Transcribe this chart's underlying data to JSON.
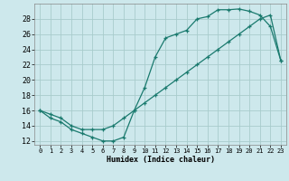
{
  "xlabel": "Humidex (Indice chaleur)",
  "bg_color": "#cde8ec",
  "line_color": "#1a7a6e",
  "grid_color": "#a8cccc",
  "xlim": [
    -0.5,
    23.5
  ],
  "ylim": [
    11.5,
    30.0
  ],
  "xticks": [
    0,
    1,
    2,
    3,
    4,
    5,
    6,
    7,
    8,
    9,
    10,
    11,
    12,
    13,
    14,
    15,
    16,
    17,
    18,
    19,
    20,
    21,
    22,
    23
  ],
  "yticks": [
    12,
    14,
    16,
    18,
    20,
    22,
    24,
    26,
    28
  ],
  "curve1_x": [
    0,
    1,
    2,
    3,
    4,
    5,
    6,
    7,
    8,
    9,
    10,
    11,
    12,
    13,
    14,
    15,
    16,
    17,
    18,
    19,
    20,
    21,
    22,
    23
  ],
  "curve1_y": [
    16,
    15,
    14.5,
    13.5,
    13,
    12.5,
    12,
    12,
    12.5,
    16,
    19,
    23,
    25.5,
    26,
    26.5,
    28,
    28.3,
    29.2,
    29.2,
    29.3,
    29,
    28.5,
    27,
    22.5
  ],
  "curve2_x": [
    0,
    1,
    2,
    3,
    4,
    5,
    6,
    7,
    8,
    9,
    10,
    11,
    12,
    13,
    14,
    15,
    16,
    17,
    18,
    19,
    20,
    21,
    22,
    23
  ],
  "curve2_y": [
    16,
    15.5,
    15,
    14,
    13.5,
    13.5,
    13.5,
    14,
    15,
    16,
    17,
    18,
    19,
    20,
    21,
    22,
    23,
    24,
    25,
    26,
    27,
    28,
    28.5,
    22.5
  ],
  "xlabel_fontsize": 6,
  "tick_fontsize": 5
}
